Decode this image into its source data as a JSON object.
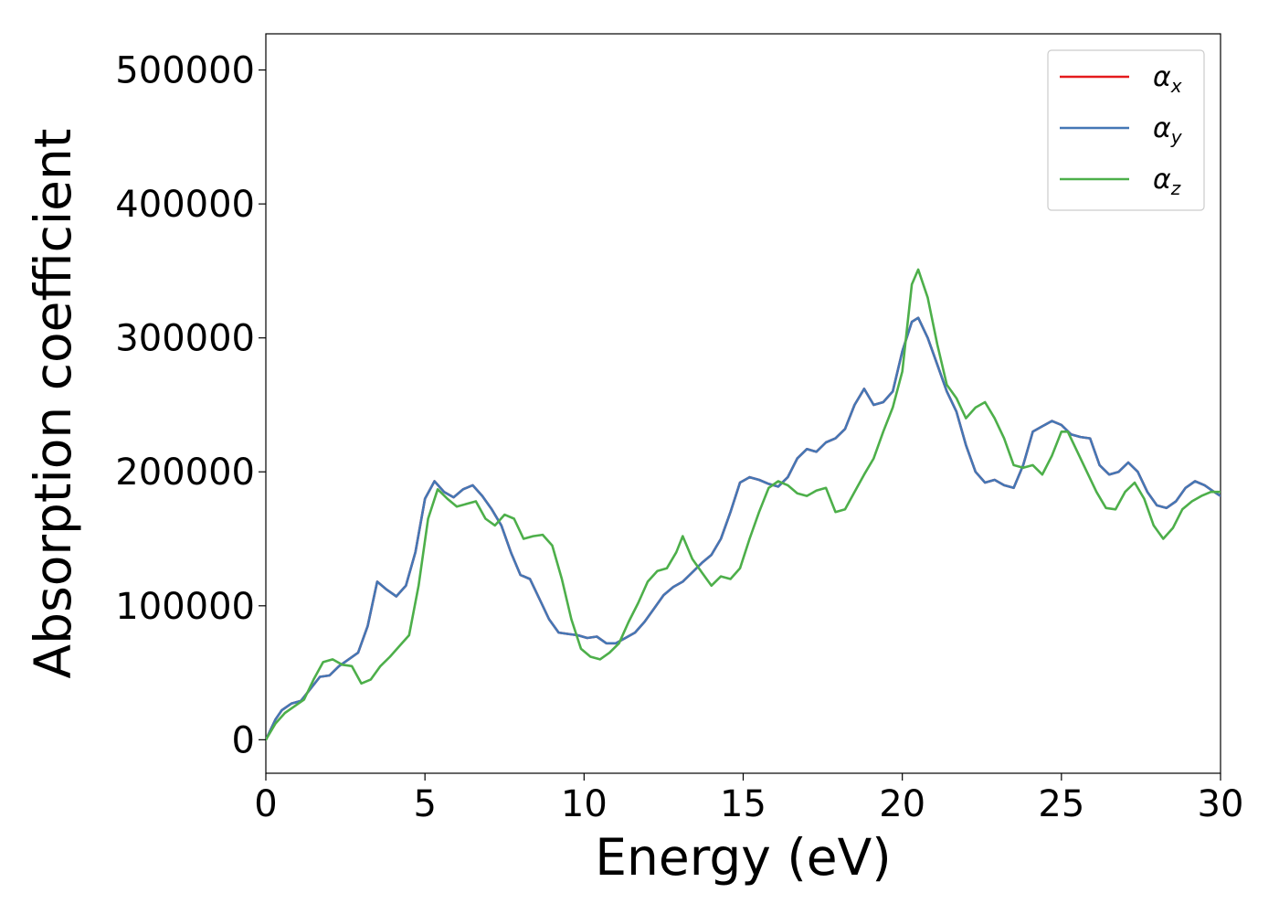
{
  "chart_data": {
    "type": "line",
    "xlabel": "Energy (eV)",
    "ylabel": "Absorption coefficient",
    "xlim": [
      0,
      30
    ],
    "ylim": [
      -25000,
      527000
    ],
    "xticks": [
      "0",
      "5",
      "10",
      "15",
      "20",
      "25",
      "30"
    ],
    "yticks": [
      "0",
      "100000",
      "200000",
      "300000",
      "400000",
      "500000"
    ],
    "grid": false,
    "legend_position": "top-right",
    "series": [
      {
        "name": "αx",
        "symbol": "α",
        "subscript": "x",
        "color": "#e41a1c",
        "x": [
          0,
          0.3,
          0.5,
          0.8,
          1.1,
          1.4,
          1.7,
          2.0,
          2.3,
          2.6,
          2.9,
          3.2,
          3.5,
          3.8,
          4.1,
          4.4,
          4.7,
          5.0,
          5.3,
          5.6,
          5.9,
          6.2,
          6.5,
          6.8,
          7.1,
          7.4,
          7.7,
          8.0,
          8.3,
          8.6,
          8.9,
          9.2,
          9.5,
          9.8,
          10.1,
          10.4,
          10.7,
          11.0,
          11.3,
          11.6,
          11.9,
          12.2,
          12.5,
          12.8,
          13.1,
          13.4,
          13.7,
          14.0,
          14.3,
          14.6,
          14.9,
          15.2,
          15.5,
          15.8,
          16.1,
          16.4,
          16.7,
          17.0,
          17.3,
          17.6,
          17.9,
          18.2,
          18.5,
          18.8,
          19.1,
          19.4,
          19.7,
          20.0,
          20.3,
          20.5,
          20.8,
          21.1,
          21.4,
          21.7,
          22.0,
          22.3,
          22.6,
          22.9,
          23.2,
          23.5,
          23.8,
          24.1,
          24.4,
          24.7,
          25.0,
          25.3,
          25.6,
          25.9,
          26.2,
          26.5,
          26.8,
          27.1,
          27.4,
          27.7,
          28.0,
          28.3,
          28.6,
          28.9,
          29.2,
          29.5,
          29.8,
          30.0
        ],
        "values": [
          0,
          15000,
          22000,
          27000,
          29000,
          38000,
          47000,
          48000,
          55000,
          60000,
          65000,
          85000,
          118000,
          112000,
          107000,
          115000,
          140000,
          180000,
          193000,
          185000,
          181000,
          187000,
          190000,
          182000,
          172000,
          160000,
          140000,
          123000,
          120000,
          105000,
          90000,
          80000,
          79000,
          78000,
          76000,
          77000,
          72000,
          72000,
          76000,
          80000,
          88000,
          98000,
          108000,
          114000,
          118000,
          125000,
          132000,
          138000,
          150000,
          170000,
          192000,
          196000,
          194000,
          191000,
          189000,
          196000,
          210000,
          217000,
          215000,
          222000,
          225000,
          232000,
          250000,
          262000,
          250000,
          252000,
          260000,
          290000,
          312000,
          315000,
          300000,
          280000,
          260000,
          245000,
          220000,
          200000,
          192000,
          194000,
          190000,
          188000,
          205000,
          230000,
          234000,
          238000,
          235000,
          228000,
          226000,
          225000,
          205000,
          198000,
          200000,
          207000,
          200000,
          185000,
          175000,
          173000,
          178000,
          188000,
          193000,
          190000,
          185000,
          182000
        ]
      },
      {
        "name": "αy",
        "symbol": "α",
        "subscript": "y",
        "color": "#4477b5",
        "x": [
          0,
          0.3,
          0.5,
          0.8,
          1.1,
          1.4,
          1.7,
          2.0,
          2.3,
          2.6,
          2.9,
          3.2,
          3.5,
          3.8,
          4.1,
          4.4,
          4.7,
          5.0,
          5.3,
          5.6,
          5.9,
          6.2,
          6.5,
          6.8,
          7.1,
          7.4,
          7.7,
          8.0,
          8.3,
          8.6,
          8.9,
          9.2,
          9.5,
          9.8,
          10.1,
          10.4,
          10.7,
          11.0,
          11.3,
          11.6,
          11.9,
          12.2,
          12.5,
          12.8,
          13.1,
          13.4,
          13.7,
          14.0,
          14.3,
          14.6,
          14.9,
          15.2,
          15.5,
          15.8,
          16.1,
          16.4,
          16.7,
          17.0,
          17.3,
          17.6,
          17.9,
          18.2,
          18.5,
          18.8,
          19.1,
          19.4,
          19.7,
          20.0,
          20.3,
          20.5,
          20.8,
          21.1,
          21.4,
          21.7,
          22.0,
          22.3,
          22.6,
          22.9,
          23.2,
          23.5,
          23.8,
          24.1,
          24.4,
          24.7,
          25.0,
          25.3,
          25.6,
          25.9,
          26.2,
          26.5,
          26.8,
          27.1,
          27.4,
          27.7,
          28.0,
          28.3,
          28.6,
          28.9,
          29.2,
          29.5,
          29.8,
          30.0
        ],
        "values": [
          0,
          15000,
          22000,
          27000,
          29000,
          38000,
          47000,
          48000,
          55000,
          60000,
          65000,
          85000,
          118000,
          112000,
          107000,
          115000,
          140000,
          180000,
          193000,
          185000,
          181000,
          187000,
          190000,
          182000,
          172000,
          160000,
          140000,
          123000,
          120000,
          105000,
          90000,
          80000,
          79000,
          78000,
          76000,
          77000,
          72000,
          72000,
          76000,
          80000,
          88000,
          98000,
          108000,
          114000,
          118000,
          125000,
          132000,
          138000,
          150000,
          170000,
          192000,
          196000,
          194000,
          191000,
          189000,
          196000,
          210000,
          217000,
          215000,
          222000,
          225000,
          232000,
          250000,
          262000,
          250000,
          252000,
          260000,
          290000,
          312000,
          315000,
          300000,
          280000,
          260000,
          245000,
          220000,
          200000,
          192000,
          194000,
          190000,
          188000,
          205000,
          230000,
          234000,
          238000,
          235000,
          228000,
          226000,
          225000,
          205000,
          198000,
          200000,
          207000,
          200000,
          185000,
          175000,
          173000,
          178000,
          188000,
          193000,
          190000,
          185000,
          182000
        ]
      },
      {
        "name": "αz",
        "symbol": "α",
        "subscript": "z",
        "color": "#4daf4a",
        "x": [
          0,
          0.3,
          0.6,
          0.9,
          1.2,
          1.5,
          1.8,
          2.1,
          2.4,
          2.7,
          3.0,
          3.3,
          3.6,
          3.9,
          4.2,
          4.5,
          4.8,
          5.1,
          5.4,
          5.7,
          6.0,
          6.3,
          6.6,
          6.9,
          7.2,
          7.5,
          7.8,
          8.1,
          8.4,
          8.7,
          9.0,
          9.3,
          9.6,
          9.9,
          10.2,
          10.5,
          10.8,
          11.1,
          11.4,
          11.7,
          12.0,
          12.3,
          12.6,
          12.9,
          13.1,
          13.4,
          13.7,
          14.0,
          14.3,
          14.6,
          14.9,
          15.2,
          15.5,
          15.8,
          16.1,
          16.4,
          16.7,
          17.0,
          17.3,
          17.6,
          17.9,
          18.2,
          18.5,
          18.8,
          19.1,
          19.4,
          19.7,
          20.0,
          20.3,
          20.5,
          20.8,
          21.1,
          21.4,
          21.7,
          22.0,
          22.3,
          22.6,
          22.9,
          23.2,
          23.5,
          23.8,
          24.1,
          24.4,
          24.7,
          25.0,
          25.2,
          25.5,
          25.8,
          26.1,
          26.4,
          26.7,
          27.0,
          27.3,
          27.6,
          27.9,
          28.2,
          28.5,
          28.8,
          29.1,
          29.4,
          29.7,
          30.0
        ],
        "values": [
          0,
          12000,
          20000,
          25000,
          30000,
          45000,
          58000,
          60000,
          56000,
          55000,
          42000,
          45000,
          55000,
          62000,
          70000,
          78000,
          115000,
          165000,
          187000,
          180000,
          174000,
          176000,
          178000,
          165000,
          160000,
          168000,
          165000,
          150000,
          152000,
          153000,
          145000,
          120000,
          90000,
          68000,
          62000,
          60000,
          65000,
          72000,
          88000,
          102000,
          118000,
          126000,
          128000,
          140000,
          152000,
          135000,
          125000,
          115000,
          122000,
          120000,
          128000,
          150000,
          170000,
          188000,
          193000,
          190000,
          184000,
          182000,
          186000,
          188000,
          170000,
          172000,
          185000,
          198000,
          210000,
          230000,
          248000,
          275000,
          340000,
          351000,
          330000,
          295000,
          265000,
          255000,
          240000,
          248000,
          252000,
          240000,
          225000,
          205000,
          203000,
          205000,
          198000,
          212000,
          230000,
          230000,
          215000,
          200000,
          185000,
          173000,
          172000,
          185000,
          192000,
          180000,
          160000,
          150000,
          158000,
          172000,
          178000,
          182000,
          185000,
          185000
        ]
      }
    ]
  }
}
